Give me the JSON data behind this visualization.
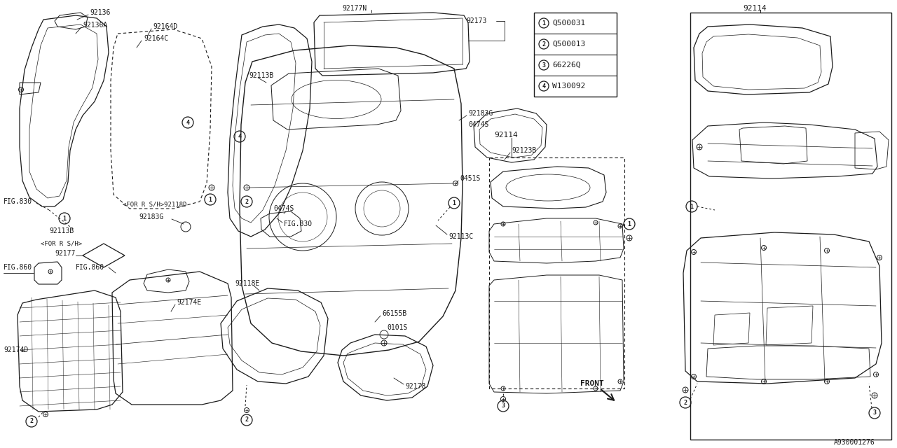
{
  "bg_color": "#ffffff",
  "line_color": "#1a1a1a",
  "legend": [
    {
      "num": "1",
      "code": "Q500031"
    },
    {
      "num": "2",
      "code": "Q500013"
    },
    {
      "num": "3",
      "code": "66226Q"
    },
    {
      "num": "4",
      "code": "W130092"
    }
  ],
  "catalog_num": "A930001276",
  "font_mono": "monospace"
}
